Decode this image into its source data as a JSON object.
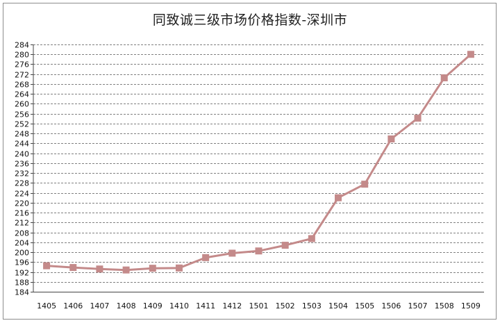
{
  "chart_data": {
    "type": "line",
    "title": "同致诚三级市场价格指数-深圳市",
    "xlabel": "",
    "ylabel": "",
    "categories": [
      "1405",
      "1406",
      "1407",
      "1408",
      "1409",
      "1410",
      "1411",
      "1412",
      "1501",
      "1502",
      "1503",
      "1504",
      "1505",
      "1506",
      "1507",
      "1508",
      "1509"
    ],
    "series": [
      {
        "values": [
          194.5,
          193.8,
          193.2,
          192.8,
          193.5,
          193.6,
          197.8,
          199.6,
          200.5,
          202.8,
          205.5,
          222.0,
          227.5,
          245.8,
          254.2,
          270.5,
          280.0
        ]
      }
    ],
    "ylim": [
      184,
      284
    ],
    "ytick_step": 4,
    "grid": true,
    "grid_style": "dashed horizontal",
    "legend": "none",
    "line_color": "#c48a8a",
    "marker": "square"
  }
}
